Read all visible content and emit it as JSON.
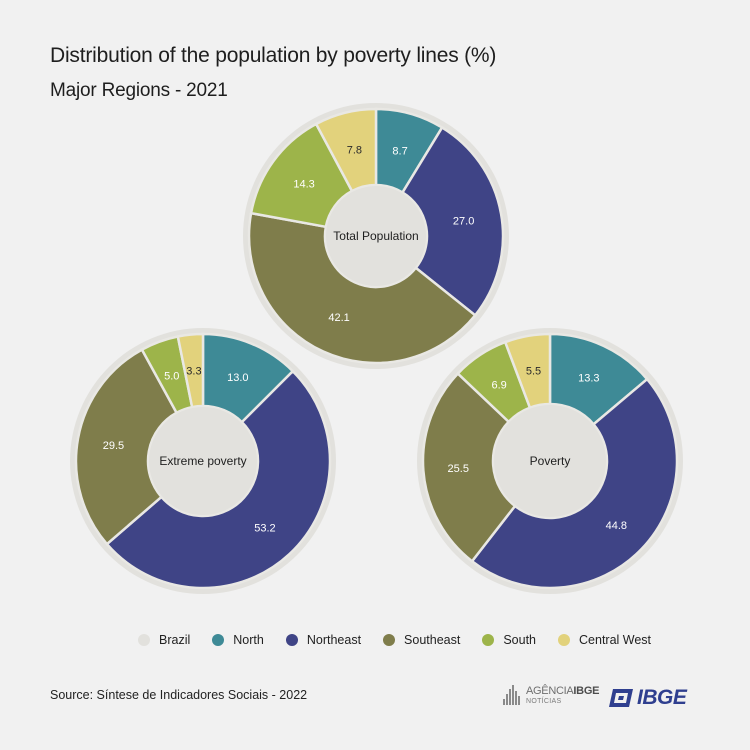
{
  "header": {
    "title": "Distribution of the population by poverty lines (%)",
    "subtitle": "Major Regions - 2021"
  },
  "legend": [
    {
      "label": "Brazil",
      "color": "#e2e1dd"
    },
    {
      "label": "North",
      "color": "#3e8a96"
    },
    {
      "label": "Northeast",
      "color": "#3f4486"
    },
    {
      "label": "Southeast",
      "color": "#7f7d4b"
    },
    {
      "label": "South",
      "color": "#9db44a"
    },
    {
      "label": "Central West",
      "color": "#e2d27c"
    }
  ],
  "chart_data": [
    {
      "type": "pie",
      "center_label": "Total Population",
      "categories": [
        "North",
        "Northeast",
        "Southeast",
        "South",
        "Central West"
      ],
      "values": [
        8.7,
        27.0,
        42.1,
        14.3,
        7.8
      ],
      "labels": [
        "8.7",
        "27.0",
        "42.1",
        "14.3",
        "7.8"
      ]
    },
    {
      "type": "pie",
      "center_label": "Extreme poverty",
      "categories": [
        "North",
        "Northeast",
        "Southeast",
        "South",
        "Central West"
      ],
      "values": [
        13.0,
        53.2,
        29.5,
        5.0,
        3.3
      ],
      "labels": [
        "13.0",
        "53.2",
        "29.5",
        "5.0",
        "3.3"
      ]
    },
    {
      "type": "pie",
      "center_label": "Poverty",
      "categories": [
        "North",
        "Northeast",
        "Southeast",
        "South",
        "Central West"
      ],
      "values": [
        13.3,
        44.8,
        25.5,
        6.9,
        5.5
      ],
      "labels": [
        "13.3",
        "44.8",
        "25.5",
        "6.9",
        "5.5"
      ]
    }
  ],
  "footer": {
    "source": "Source: Síntese de Indicadores Sociais - 2022",
    "agencia_prefix": "AGÊNCIA",
    "agencia_brand": "IBGE",
    "agencia_sub": "NOTÍCIAS",
    "ibge_logo": "IBGE"
  }
}
